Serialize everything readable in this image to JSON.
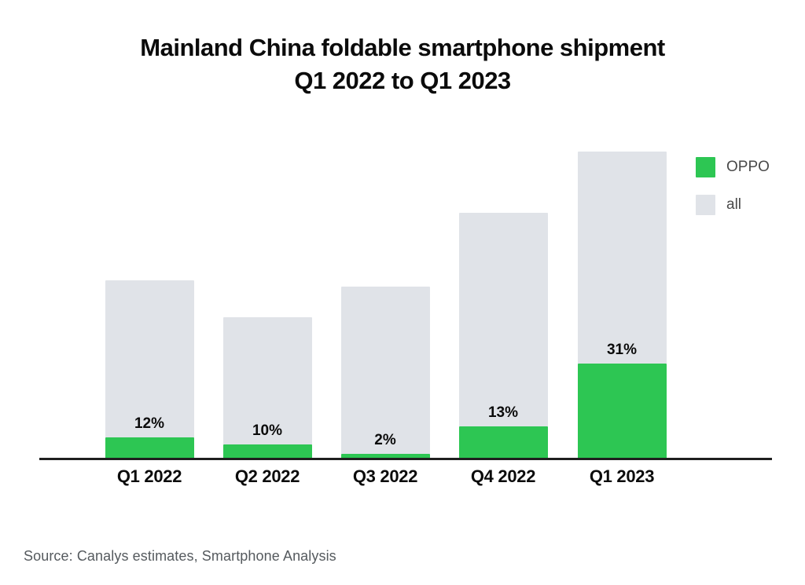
{
  "title": {
    "line1": "Mainland China foldable smartphone shipment",
    "line2": "Q1 2022 to Q1 2023"
  },
  "legend": {
    "items": [
      {
        "label": "OPPO",
        "color": "#2dc653"
      },
      {
        "label": "all",
        "color": "#e0e3e8"
      }
    ],
    "position": "top-right"
  },
  "source": "Source: Canalys estimates, Smartphone Analysis",
  "colors": {
    "oppo_green": "#2dc653",
    "all_gray": "#e0e3e8",
    "axis": "#1f1f1f",
    "text": "#0b0b0b",
    "legend_text": "#4a4a4a",
    "source_text": "#555a5e",
    "background": "#ffffff"
  },
  "chart_data": {
    "type": "bar",
    "subtype": "stacked-share (OPPO portion inside total)",
    "title": "Mainland China foldable smartphone shipment Q1 2022 to Q1 2023",
    "categories": [
      "Q1 2022",
      "Q2 2022",
      "Q3 2022",
      "Q4 2022",
      "Q1 2023"
    ],
    "series": [
      {
        "name": "OPPO",
        "unit": "% share of all shipments",
        "values": [
          12,
          10,
          2,
          13,
          31
        ],
        "labels": [
          "12%",
          "10%",
          "2%",
          "13%",
          "31%"
        ],
        "color": "#2dc653"
      },
      {
        "name": "all",
        "unit": "relative total bar height (no y-axis scale shown; normalized to Q1 2023 = 1.00)",
        "values": [
          0.58,
          0.46,
          0.56,
          0.8,
          1.0
        ],
        "color": "#e0e3e8"
      }
    ],
    "xlabel": "",
    "ylabel": "",
    "y_axis_ticks": "none",
    "grid": false,
    "legend_position": "top-right"
  }
}
